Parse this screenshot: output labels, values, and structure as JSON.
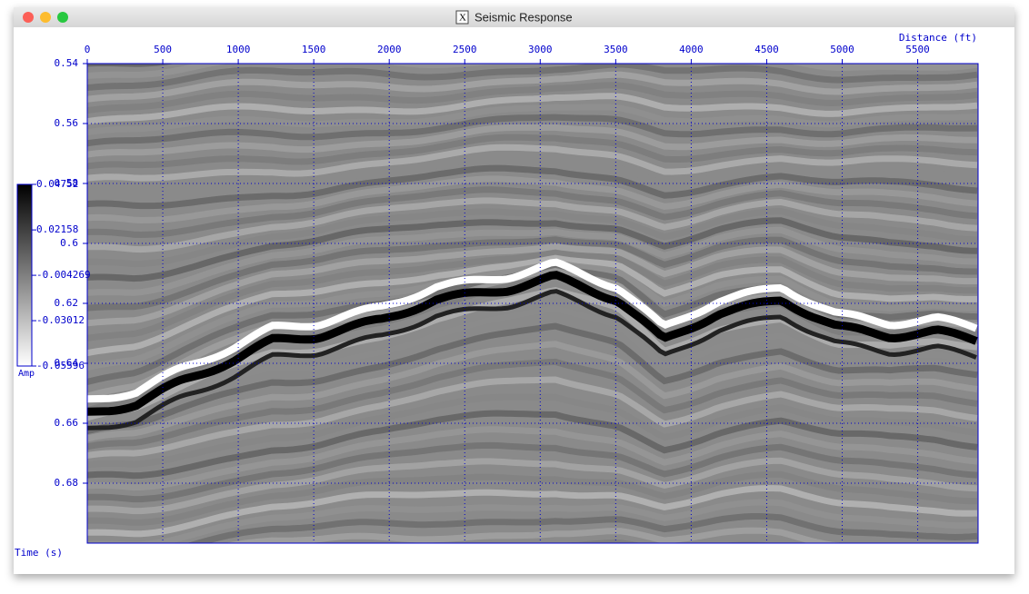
{
  "chart_data": {
    "type": "image",
    "title": "Seismic Response",
    "xlabel": "Distance (ft)",
    "ylabel": "Time (s)",
    "xlim": [
      0,
      5900
    ],
    "xticks": [
      0,
      500,
      1000,
      1500,
      2000,
      2500,
      3000,
      3500,
      4000,
      4500,
      5000,
      5500
    ],
    "ylim": [
      0.54,
      0.7
    ],
    "yticks": [
      0.54,
      0.56,
      0.58,
      0.6,
      0.62,
      0.64,
      0.66,
      0.68
    ],
    "yinvert": true,
    "grid": true,
    "axis_color": "#0000cc",
    "colorbar": {
      "label": "Amp",
      "clim": [
        -0.05596,
        0.04752
      ],
      "ticks": [
        0.04752,
        0.02158,
        -0.004269,
        -0.03012,
        -0.05596
      ]
    }
  }
}
